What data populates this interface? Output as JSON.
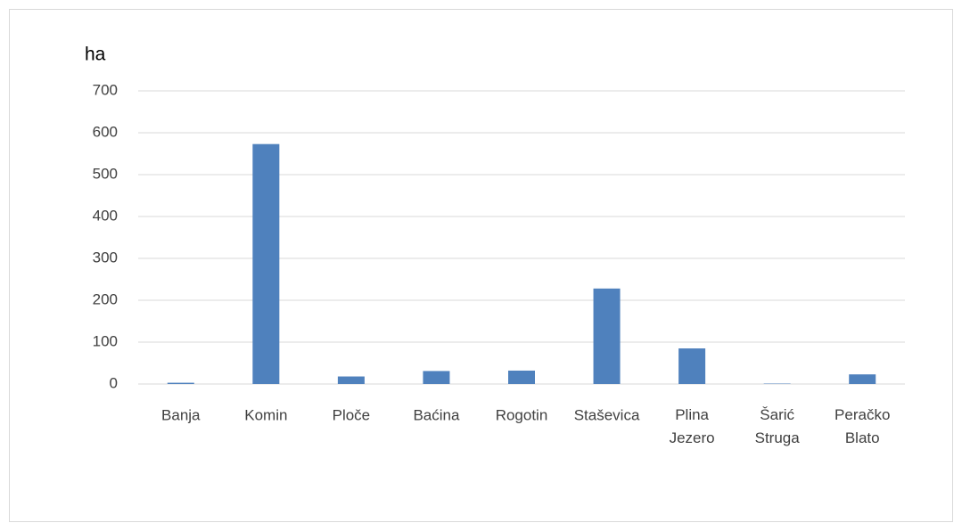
{
  "chart_data": {
    "type": "bar",
    "y_label": "ha",
    "categories": [
      "Banja",
      "Komin",
      "Ploče",
      "Baćina",
      "Rogotin",
      "Staševica",
      "Plina Jezero",
      "Šarić Struga",
      "Peračko Blato"
    ],
    "values": [
      3,
      573,
      18,
      31,
      32,
      228,
      85,
      1,
      23
    ],
    "color": "#4f81bd",
    "ylim": [
      0,
      700
    ],
    "yticks": [
      0,
      100,
      200,
      300,
      400,
      500,
      600,
      700
    ],
    "grid": true
  }
}
